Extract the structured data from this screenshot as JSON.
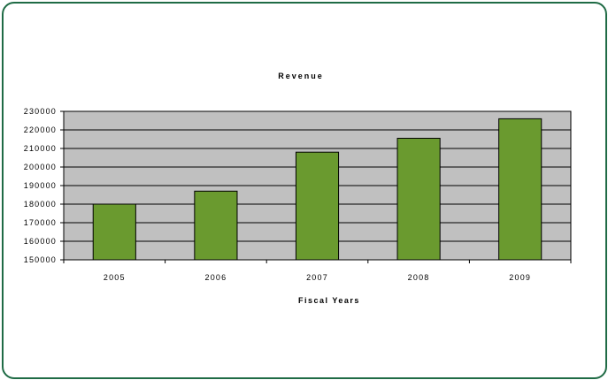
{
  "chart_data": {
    "type": "bar",
    "title": "Revenue",
    "xlabel": "Fiscal Years",
    "ylabel": "",
    "categories": [
      "2005",
      "2006",
      "2007",
      "2008",
      "2009"
    ],
    "values": [
      180000,
      187000,
      208000,
      215500,
      226000
    ],
    "ylim": [
      150000,
      230000
    ],
    "yticks": [
      "150000",
      "160000",
      "170000",
      "180000",
      "190000",
      "200000",
      "210000",
      "220000",
      "230000"
    ],
    "grid": true,
    "legend": "none",
    "colors": {
      "bar": "#6a9a2f",
      "plot_background": "#c0c0c0",
      "frame_border": "#1f6b45"
    }
  }
}
